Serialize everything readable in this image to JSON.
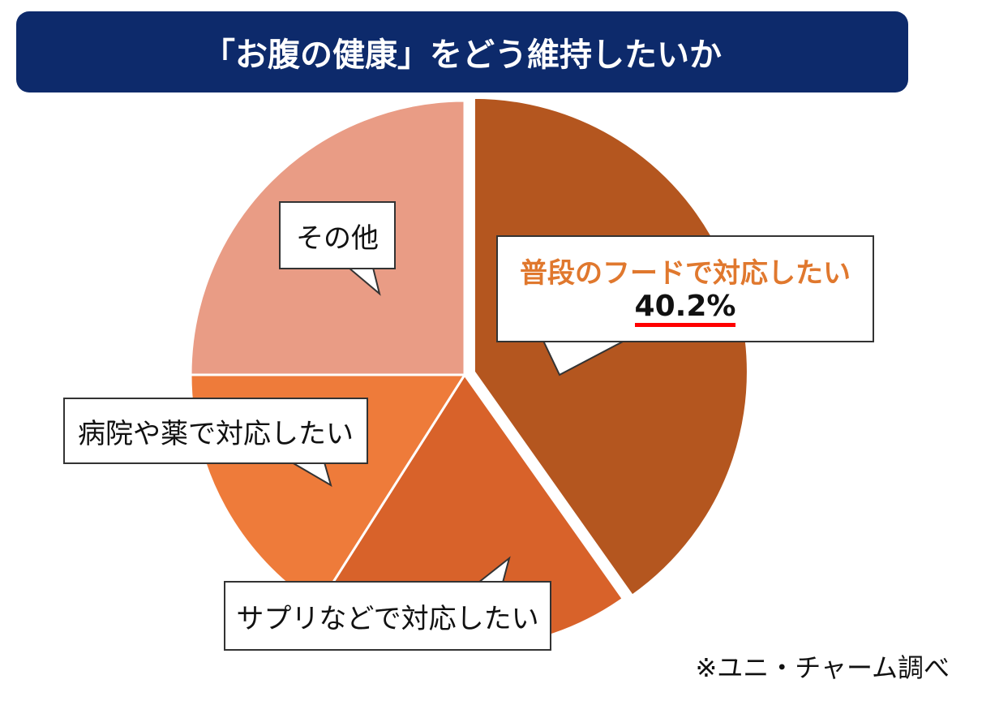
{
  "title": "「お腹の健康」をどう維持したいか",
  "chart_data": {
    "type": "pie",
    "title": "「お腹の健康」をどう維持したいか",
    "slices": [
      {
        "label": "普段のフードで対応したい",
        "value": 40.2,
        "value_label": "40.2%",
        "color": "#b4561f",
        "exploded": true
      },
      {
        "label": "サプリなどで対応したい",
        "value": 18.8,
        "color": "#d8622a",
        "exploded": false
      },
      {
        "label": "病院や薬で対応したい",
        "value": 16.0,
        "color": "#ee7b3a",
        "exploded": false
      },
      {
        "label": "その他",
        "value": 25.0,
        "color": "#e99c85",
        "exploded": false
      }
    ],
    "start": "top",
    "direction": "clockwise"
  },
  "source": "※ユニ・チャーム調べ"
}
